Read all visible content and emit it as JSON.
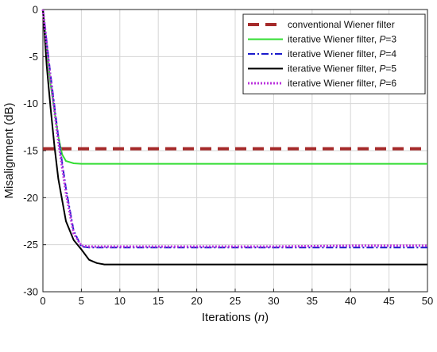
{
  "chart_data": {
    "type": "line",
    "xlabel": "Iterations",
    "xlabel_var": "n",
    "ylabel": "Misalignment (dB)",
    "xlim": [
      0,
      50
    ],
    "ylim": [
      -30,
      0
    ],
    "xticks": [
      "0",
      "5",
      "10",
      "15",
      "20",
      "25",
      "30",
      "35",
      "40",
      "45",
      "50"
    ],
    "yticks": [
      "0",
      "-5",
      "-10",
      "-15",
      "-20",
      "-25",
      "-30"
    ],
    "grid": true,
    "legend_position": "top-right",
    "series": [
      {
        "name": "conventional Wiener filter",
        "name_italic": "",
        "name_suffix": "",
        "color": "#a52a2a",
        "dash": "14,8",
        "width": 4,
        "x": [
          0,
          50
        ],
        "y": [
          -14.8,
          -14.8
        ]
      },
      {
        "name": "iterative Wiener filter, ",
        "name_italic": "P",
        "name_suffix": "=3",
        "color": "#33dd33",
        "dash": "",
        "width": 2,
        "x": [
          0,
          1,
          2,
          2.5,
          3,
          4,
          5,
          10,
          20,
          30,
          40,
          50
        ],
        "y": [
          0,
          -8,
          -13.5,
          -15.4,
          -16.1,
          -16.35,
          -16.4,
          -16.4,
          -16.4,
          -16.4,
          -16.4,
          -16.4
        ]
      },
      {
        "name": "iterative Wiener filter, ",
        "name_italic": "P",
        "name_suffix": "=4",
        "color": "#1a1acc",
        "dash": "9,3,2,3",
        "width": 2,
        "x": [
          0,
          1,
          2,
          3,
          4,
          5,
          6,
          10,
          20,
          30,
          40,
          50
        ],
        "y": [
          0,
          -7,
          -13.5,
          -19,
          -23.5,
          -25.2,
          -25.3,
          -25.3,
          -25.3,
          -25.3,
          -25.3,
          -25.3
        ]
      },
      {
        "name": "iterative Wiener filter, ",
        "name_italic": "P",
        "name_suffix": "=5",
        "color": "#000000",
        "dash": "",
        "width": 2,
        "x": [
          0,
          0.5,
          1,
          1.5,
          2,
          3,
          4,
          5,
          6,
          7,
          8,
          10,
          20,
          30,
          40,
          50
        ],
        "y": [
          0,
          -6,
          -10.5,
          -14.5,
          -18,
          -22.5,
          -24.5,
          -25.5,
          -26.6,
          -26.95,
          -27.1,
          -27.1,
          -27.1,
          -27.1,
          -27.1,
          -27.1
        ]
      },
      {
        "name": "iterative Wiener filter, ",
        "name_italic": "P",
        "name_suffix": "=6",
        "color": "#bb33dd",
        "dash": "2,2",
        "width": 3,
        "x": [
          0,
          1,
          2,
          3,
          4,
          5,
          6,
          10,
          20,
          30,
          40,
          50
        ],
        "y": [
          0,
          -7.5,
          -14,
          -19.5,
          -23.8,
          -25.1,
          -25.2,
          -25.2,
          -25.2,
          -25.2,
          -25.1,
          -25.1
        ]
      }
    ]
  }
}
